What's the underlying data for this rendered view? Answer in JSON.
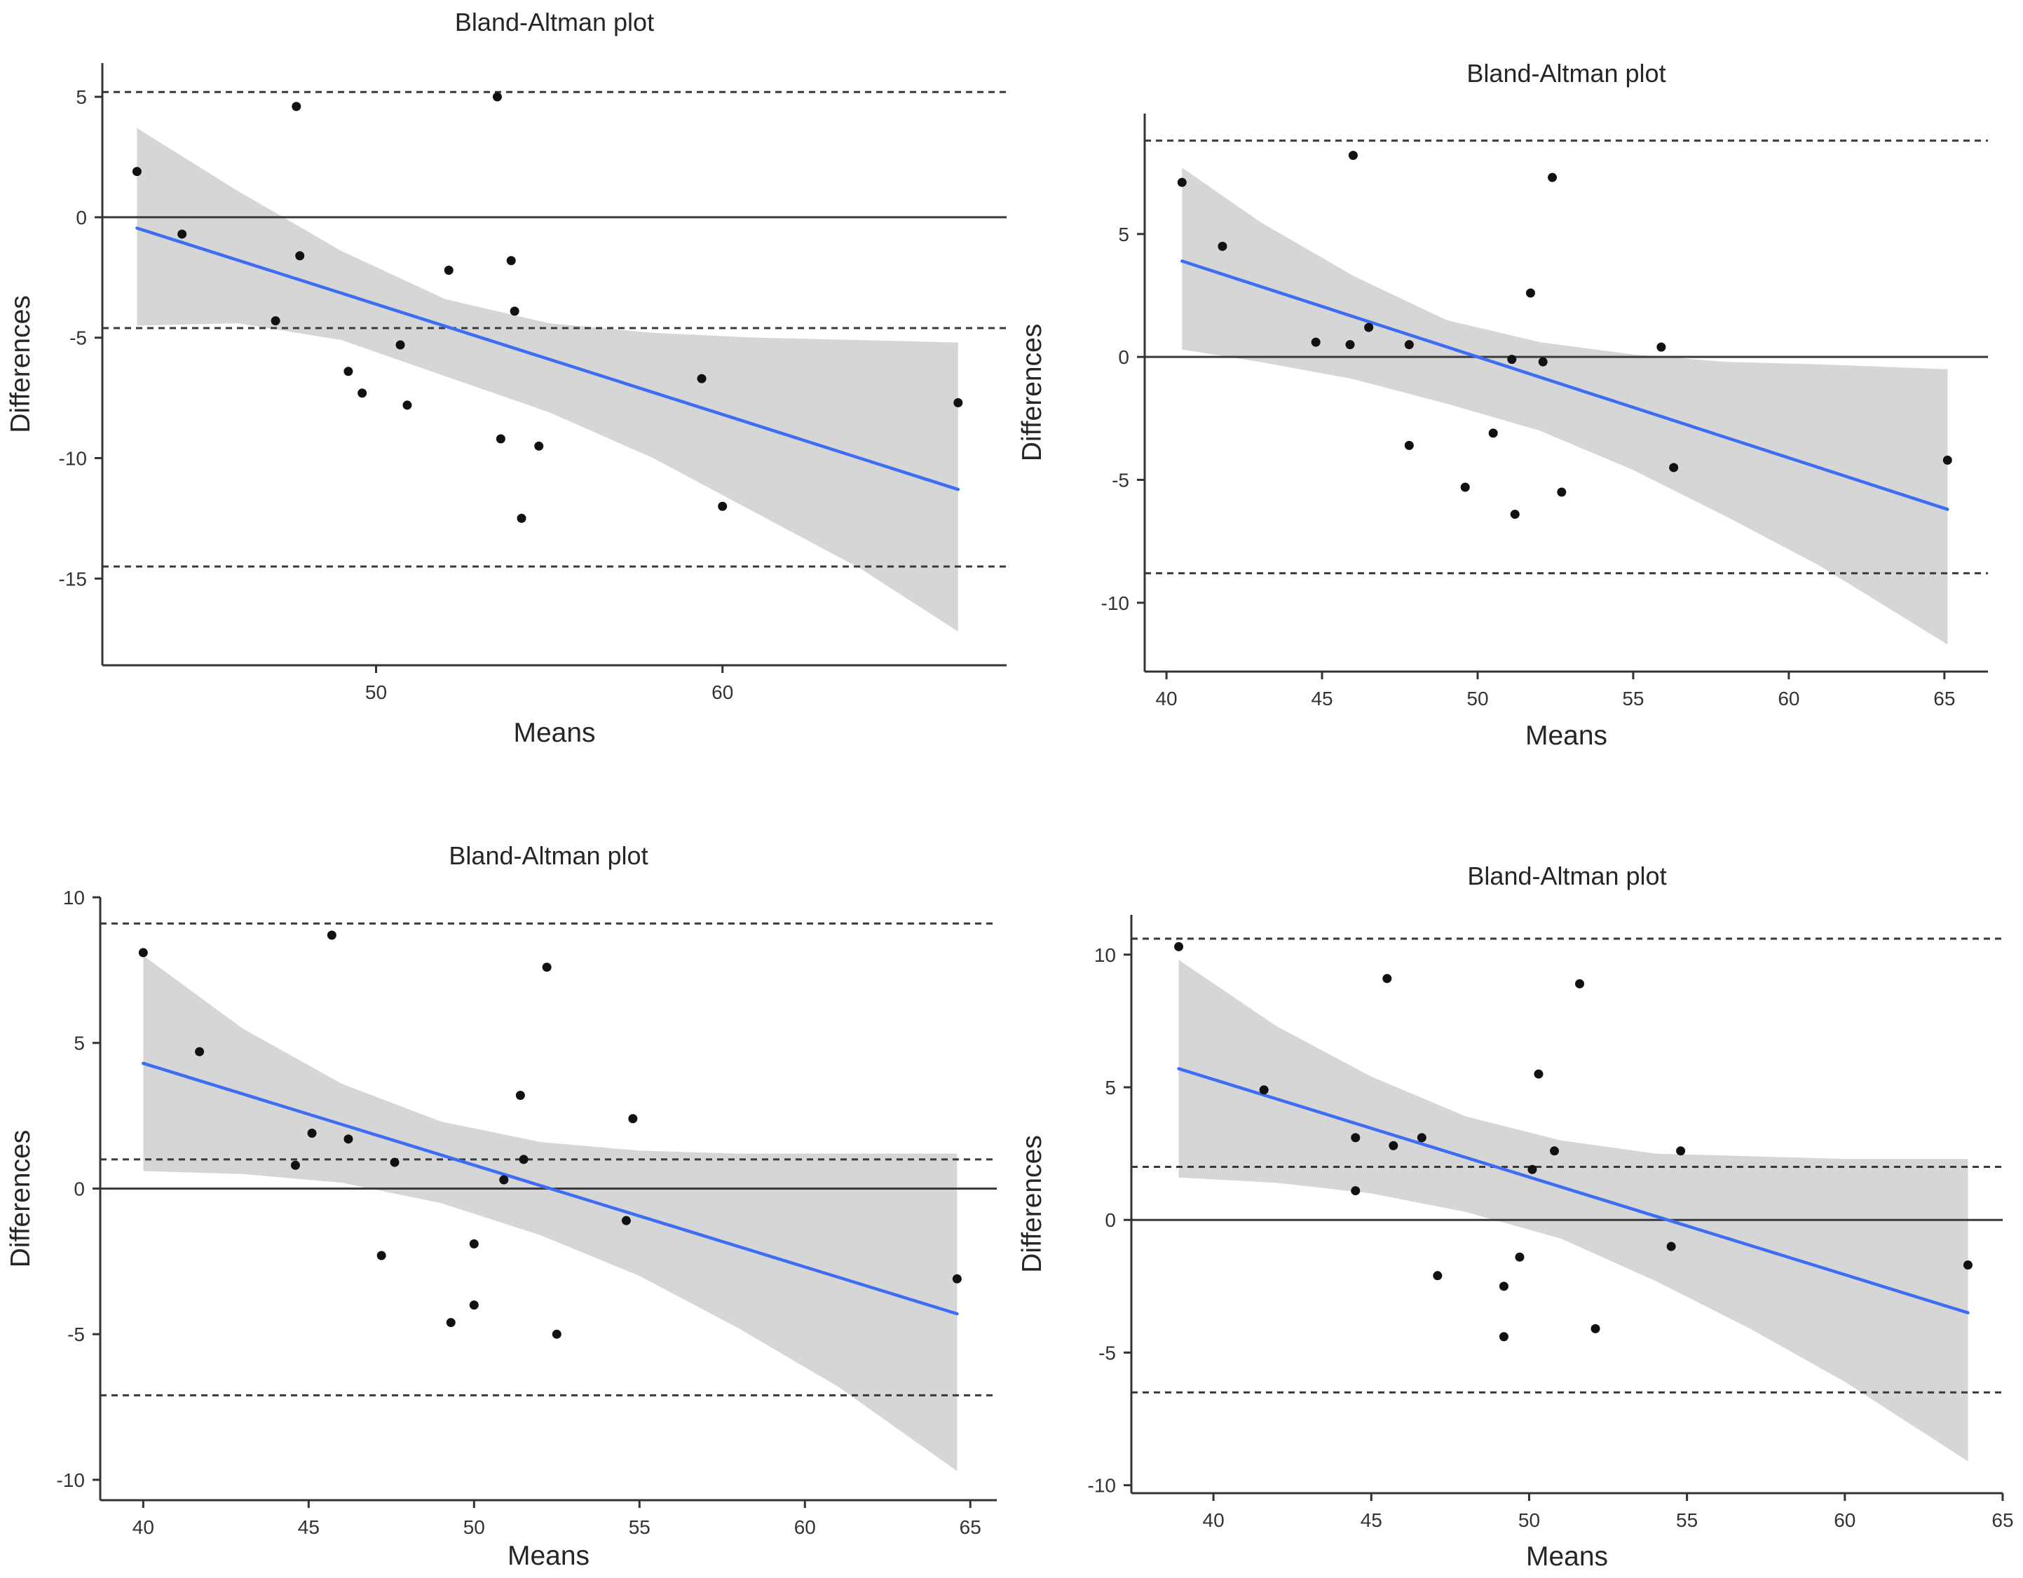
{
  "colors": {
    "points": "#111111",
    "trend_line": "#3d6df2",
    "confidence_band": "#d6d6d6",
    "reference_lines": "#3a3a3a",
    "axis": "#333333"
  },
  "chart_data": [
    {
      "type": "scatter",
      "title": "Bland-Altman plot",
      "xlabel": "Means",
      "ylabel": "Differences",
      "xlim": [
        42.1,
        68.2
      ],
      "ylim": [
        -18.6,
        6.4
      ],
      "xticks": [
        50,
        60
      ],
      "yticks": [
        5,
        0,
        -5,
        -10,
        -15
      ],
      "grid": false,
      "points": [
        {
          "x": 43.1,
          "y": 1.9
        },
        {
          "x": 44.4,
          "y": -0.7
        },
        {
          "x": 47.1,
          "y": -4.3
        },
        {
          "x": 47.7,
          "y": 4.6
        },
        {
          "x": 47.8,
          "y": -1.6
        },
        {
          "x": 49.2,
          "y": -6.4
        },
        {
          "x": 49.6,
          "y": -7.3
        },
        {
          "x": 50.7,
          "y": -5.3
        },
        {
          "x": 50.9,
          "y": -7.8
        },
        {
          "x": 52.1,
          "y": -2.2
        },
        {
          "x": 53.5,
          "y": 5.0
        },
        {
          "x": 53.6,
          "y": -9.2
        },
        {
          "x": 53.9,
          "y": -1.8
        },
        {
          "x": 54.0,
          "y": -3.9
        },
        {
          "x": 54.2,
          "y": -12.5
        },
        {
          "x": 54.7,
          "y": -9.5
        },
        {
          "x": 59.4,
          "y": -6.7
        },
        {
          "x": 60.0,
          "y": -12.0
        },
        {
          "x": 66.8,
          "y": -7.7
        }
      ],
      "zero_line": 0,
      "dashed_lines": [
        5.2,
        -4.6,
        -14.5
      ],
      "trend": {
        "x": [
          43.1,
          66.8
        ],
        "y": [
          -0.45,
          -11.3
        ]
      },
      "band": {
        "x": [
          43.1,
          46,
          49,
          52,
          55,
          58,
          61,
          64,
          66.8
        ],
        "upper": [
          3.7,
          1.1,
          -1.4,
          -3.4,
          -4.4,
          -4.8,
          -5.0,
          -5.1,
          -5.2
        ],
        "lower": [
          -4.5,
          -4.4,
          -5.1,
          -6.6,
          -8.1,
          -10.0,
          -12.3,
          -14.6,
          -17.2
        ]
      }
    },
    {
      "type": "scatter",
      "title": "Bland-Altman plot",
      "xlabel": "Means",
      "ylabel": "Differences",
      "xlim": [
        39.3,
        66.4
      ],
      "ylim": [
        -12.8,
        9.9
      ],
      "xticks": [
        40,
        45,
        50,
        55,
        60,
        65
      ],
      "yticks": [
        5,
        0,
        -5,
        -10
      ],
      "grid": false,
      "points": [
        {
          "x": 40.5,
          "y": 7.1
        },
        {
          "x": 41.8,
          "y": 4.5
        },
        {
          "x": 44.8,
          "y": 0.6
        },
        {
          "x": 45.9,
          "y": 0.5
        },
        {
          "x": 46.0,
          "y": 8.2
        },
        {
          "x": 46.5,
          "y": 1.2
        },
        {
          "x": 47.8,
          "y": 0.5
        },
        {
          "x": 47.8,
          "y": -3.6
        },
        {
          "x": 49.6,
          "y": -5.3
        },
        {
          "x": 50.5,
          "y": -3.1
        },
        {
          "x": 51.1,
          "y": -0.1
        },
        {
          "x": 51.2,
          "y": -6.4
        },
        {
          "x": 51.7,
          "y": 2.6
        },
        {
          "x": 52.1,
          "y": -0.2
        },
        {
          "x": 52.4,
          "y": 7.3
        },
        {
          "x": 52.7,
          "y": -5.5
        },
        {
          "x": 55.9,
          "y": 0.4
        },
        {
          "x": 56.3,
          "y": -4.5
        },
        {
          "x": 65.1,
          "y": -4.2
        }
      ],
      "zero_line": 0,
      "dashed_lines": [
        8.8,
        -8.8
      ],
      "trend": {
        "x": [
          40.5,
          65.1
        ],
        "y": [
          3.9,
          -6.2
        ]
      },
      "band": {
        "x": [
          40.5,
          43,
          46,
          49,
          52,
          55,
          58,
          61,
          65.1
        ],
        "upper": [
          7.7,
          5.5,
          3.3,
          1.5,
          0.6,
          0.1,
          -0.2,
          -0.3,
          -0.5
        ],
        "lower": [
          0.3,
          -0.2,
          -0.9,
          -1.9,
          -3.0,
          -4.6,
          -6.5,
          -8.5,
          -11.7
        ]
      }
    },
    {
      "type": "scatter",
      "title": "Bland-Altman plot",
      "xlabel": "Means",
      "ylabel": "Differences",
      "xlim": [
        38.7,
        65.8
      ],
      "ylim": [
        -10.7,
        10.0
      ],
      "xticks": [
        40,
        45,
        50,
        55,
        60,
        65
      ],
      "yticks": [
        10,
        5,
        0,
        -5,
        -10
      ],
      "grid": false,
      "points": [
        {
          "x": 40.0,
          "y": 8.1
        },
        {
          "x": 41.7,
          "y": 4.7
        },
        {
          "x": 44.6,
          "y": 0.8
        },
        {
          "x": 45.1,
          "y": 1.9
        },
        {
          "x": 45.7,
          "y": 8.7
        },
        {
          "x": 46.2,
          "y": 1.7
        },
        {
          "x": 47.2,
          "y": -2.3
        },
        {
          "x": 47.6,
          "y": 0.9
        },
        {
          "x": 49.3,
          "y": -4.6
        },
        {
          "x": 50.0,
          "y": -1.9
        },
        {
          "x": 50.0,
          "y": -4.0
        },
        {
          "x": 50.9,
          "y": 0.3
        },
        {
          "x": 51.4,
          "y": 3.2
        },
        {
          "x": 51.5,
          "y": 1.0
        },
        {
          "x": 52.2,
          "y": 7.6
        },
        {
          "x": 52.5,
          "y": -5.0
        },
        {
          "x": 54.6,
          "y": -1.1
        },
        {
          "x": 54.8,
          "y": 2.4
        },
        {
          "x": 64.6,
          "y": -3.1
        }
      ],
      "zero_line": 0,
      "dashed_lines": [
        9.1,
        1.0,
        -7.1
      ],
      "trend": {
        "x": [
          40.0,
          64.6
        ],
        "y": [
          4.3,
          -4.3
        ]
      },
      "band": {
        "x": [
          40.0,
          43,
          46,
          49,
          52,
          55,
          58,
          61,
          64.6
        ],
        "upper": [
          8.0,
          5.5,
          3.6,
          2.3,
          1.6,
          1.3,
          1.2,
          1.2,
          1.2
        ],
        "lower": [
          0.6,
          0.5,
          0.2,
          -0.5,
          -1.6,
          -3.0,
          -4.8,
          -6.8,
          -9.7
        ]
      }
    },
    {
      "type": "scatter",
      "title": "Bland-Altman plot",
      "xlabel": "Means",
      "ylabel": "Differences",
      "xlim": [
        37.4,
        65.0
      ],
      "ylim": [
        -10.3,
        11.5
      ],
      "xticks": [
        40,
        45,
        50,
        55,
        60,
        65
      ],
      "yticks": [
        10,
        5,
        0,
        -5,
        -10
      ],
      "grid": false,
      "points": [
        {
          "x": 38.9,
          "y": 10.3
        },
        {
          "x": 41.6,
          "y": 4.9
        },
        {
          "x": 44.5,
          "y": 3.1
        },
        {
          "x": 44.5,
          "y": 1.1
        },
        {
          "x": 45.5,
          "y": 9.1
        },
        {
          "x": 45.7,
          "y": 2.8
        },
        {
          "x": 46.6,
          "y": 3.1
        },
        {
          "x": 47.1,
          "y": -2.1
        },
        {
          "x": 49.2,
          "y": -2.5
        },
        {
          "x": 49.2,
          "y": -4.4
        },
        {
          "x": 49.7,
          "y": -1.4
        },
        {
          "x": 50.1,
          "y": 1.9
        },
        {
          "x": 50.3,
          "y": 5.5
        },
        {
          "x": 50.8,
          "y": 2.6
        },
        {
          "x": 51.6,
          "y": 8.9
        },
        {
          "x": 52.1,
          "y": -4.1
        },
        {
          "x": 54.5,
          "y": -1.0
        },
        {
          "x": 54.8,
          "y": 2.6
        },
        {
          "x": 63.9,
          "y": -1.7
        }
      ],
      "zero_line": 0,
      "dashed_lines": [
        10.6,
        2.0,
        -6.5
      ],
      "trend": {
        "x": [
          38.9,
          63.9
        ],
        "y": [
          5.7,
          -3.5
        ]
      },
      "band": {
        "x": [
          38.9,
          42,
          45,
          48,
          51,
          54,
          57,
          60,
          63.9
        ],
        "upper": [
          9.8,
          7.3,
          5.4,
          3.9,
          3.0,
          2.5,
          2.4,
          2.3,
          2.3
        ],
        "lower": [
          1.6,
          1.4,
          1.0,
          0.3,
          -0.7,
          -2.3,
          -4.1,
          -6.1,
          -9.1
        ]
      }
    }
  ]
}
